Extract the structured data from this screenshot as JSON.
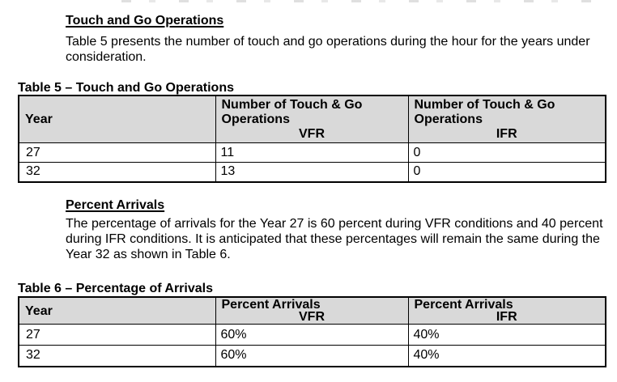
{
  "colors": {
    "table_header_bg": "#d9d9d9",
    "text": "#000000",
    "border": "#000000"
  },
  "section_touch_and_go": {
    "heading": "Touch and Go Operations",
    "body": "Table 5 presents the number of touch and go operations during the hour for the years under consideration."
  },
  "table5": {
    "caption": "Table 5 – Touch and Go Operations",
    "col1_header": "Year",
    "col2_header": "Number of Touch & Go Operations",
    "col2_subheader": "VFR",
    "col3_header": "Number of Touch & Go Operations",
    "col3_subheader": "IFR",
    "rows": [
      [
        "27",
        "11",
        "0"
      ],
      [
        "32",
        "13",
        "0"
      ]
    ]
  },
  "section_percent_arrivals": {
    "heading": "Percent Arrivals",
    "body": "The percentage of arrivals for the Year 27 is 60 percent during VFR conditions and 40 percent during IFR conditions. It is anticipated that these percentages will remain the same during the Year 32 as shown in Table 6."
  },
  "table6": {
    "caption": "Table 6 – Percentage of Arrivals",
    "col1_header": "Year",
    "col2_header": "Percent Arrivals",
    "col2_subheader": "VFR",
    "col3_header": "Percent Arrivals",
    "col3_subheader": "IFR",
    "rows": [
      [
        "27",
        "60%",
        "40%"
      ],
      [
        "32",
        "60%",
        "40%"
      ]
    ]
  }
}
